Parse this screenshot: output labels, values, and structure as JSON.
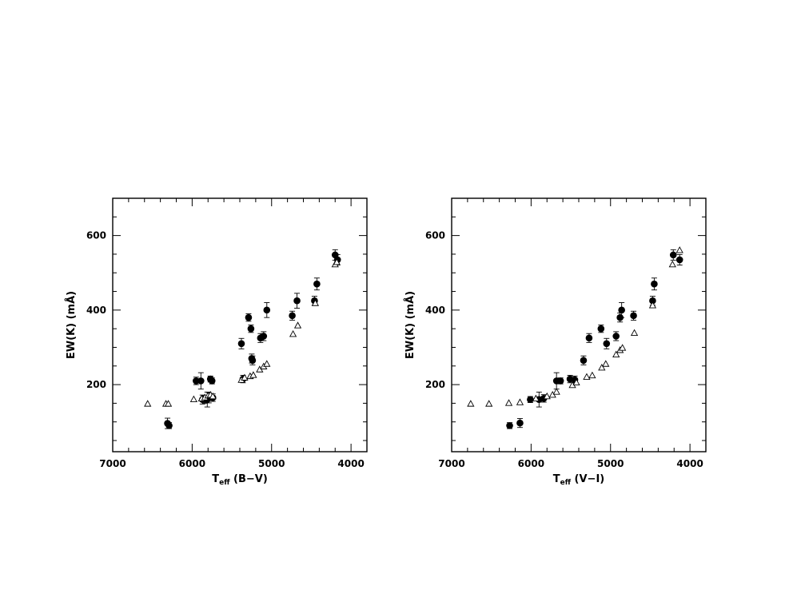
{
  "chart_data": [
    {
      "type": "scatter",
      "title": "",
      "xlabel": "T",
      "xlabel_sub": "eff",
      "xlabel_suffix": " (B−V)",
      "ylabel": "EW(K)  (mÅ)",
      "xlim": [
        7000,
        3800
      ],
      "ylim": [
        20,
        700
      ],
      "x_ticks": [
        7000,
        6000,
        5000,
        4000
      ],
      "y_ticks": [
        200,
        400,
        600
      ],
      "x_tick_labels": [
        "7000",
        "6000",
        "5000",
        "4000"
      ],
      "y_tick_labels": [
        "200",
        "400",
        "600"
      ],
      "grid": false,
      "series": [
        {
          "marker": "filled-circle",
          "error_bars": true,
          "points": [
            {
              "x": 6310,
              "y": 96,
              "err": 14
            },
            {
              "x": 6290,
              "y": 90,
              "err": 8
            },
            {
              "x": 5950,
              "y": 210,
              "err": 10
            },
            {
              "x": 5890,
              "y": 210,
              "err": 22
            },
            {
              "x": 5870,
              "y": 160,
              "err": 12
            },
            {
              "x": 5840,
              "y": 160,
              "err": 10
            },
            {
              "x": 5810,
              "y": 160,
              "err": 20
            },
            {
              "x": 5790,
              "y": 165,
              "err": 14
            },
            {
              "x": 5770,
              "y": 215,
              "err": 8
            },
            {
              "x": 5750,
              "y": 210,
              "err": 8
            },
            {
              "x": 5740,
              "y": 165,
              "err": 10
            },
            {
              "x": 5380,
              "y": 310,
              "err": 14
            },
            {
              "x": 5360,
              "y": 215,
              "err": 10
            },
            {
              "x": 5290,
              "y": 380,
              "err": 10
            },
            {
              "x": 5260,
              "y": 350,
              "err": 10
            },
            {
              "x": 5250,
              "y": 270,
              "err": 12
            },
            {
              "x": 5240,
              "y": 265,
              "err": 12
            },
            {
              "x": 5140,
              "y": 325,
              "err": 12
            },
            {
              "x": 5100,
              "y": 330,
              "err": 12
            },
            {
              "x": 5060,
              "y": 400,
              "err": 20
            },
            {
              "x": 4740,
              "y": 385,
              "err": 12
            },
            {
              "x": 4680,
              "y": 425,
              "err": 20
            },
            {
              "x": 4460,
              "y": 425,
              "err": 12
            },
            {
              "x": 4430,
              "y": 470,
              "err": 16
            },
            {
              "x": 4200,
              "y": 548,
              "err": 14
            },
            {
              "x": 4170,
              "y": 535,
              "err": 14
            }
          ]
        },
        {
          "marker": "open-triangle",
          "error_bars": false,
          "points": [
            {
              "x": 6560,
              "y": 148
            },
            {
              "x": 6330,
              "y": 148
            },
            {
              "x": 6300,
              "y": 148
            },
            {
              "x": 5980,
              "y": 160
            },
            {
              "x": 5880,
              "y": 162
            },
            {
              "x": 5840,
              "y": 165
            },
            {
              "x": 5800,
              "y": 170
            },
            {
              "x": 5770,
              "y": 172
            },
            {
              "x": 5740,
              "y": 168
            },
            {
              "x": 5380,
              "y": 212
            },
            {
              "x": 5340,
              "y": 218
            },
            {
              "x": 5270,
              "y": 222
            },
            {
              "x": 5230,
              "y": 225
            },
            {
              "x": 5150,
              "y": 240
            },
            {
              "x": 5100,
              "y": 248
            },
            {
              "x": 5060,
              "y": 255
            },
            {
              "x": 4730,
              "y": 335
            },
            {
              "x": 4670,
              "y": 358
            },
            {
              "x": 4450,
              "y": 418
            },
            {
              "x": 4200,
              "y": 522
            },
            {
              "x": 4180,
              "y": 528
            }
          ]
        }
      ]
    },
    {
      "type": "scatter",
      "title": "",
      "xlabel": "T",
      "xlabel_sub": "eff",
      "xlabel_suffix": " (V−I)",
      "ylabel": "EW(K)  (mÅ)",
      "xlim": [
        7000,
        3800
      ],
      "ylim": [
        20,
        700
      ],
      "x_ticks": [
        7000,
        6000,
        5000,
        4000
      ],
      "y_ticks": [
        200,
        400,
        600
      ],
      "x_tick_labels": [
        "7000",
        "6000",
        "5000",
        "4000"
      ],
      "y_tick_labels": [
        "200",
        "400",
        "600"
      ],
      "grid": false,
      "series": [
        {
          "marker": "filled-circle",
          "error_bars": true,
          "points": [
            {
              "x": 6270,
              "y": 90,
              "err": 8
            },
            {
              "x": 6140,
              "y": 97,
              "err": 12
            },
            {
              "x": 6010,
              "y": 160,
              "err": 8
            },
            {
              "x": 5900,
              "y": 160,
              "err": 20
            },
            {
              "x": 5840,
              "y": 163,
              "err": 10
            },
            {
              "x": 5680,
              "y": 210,
              "err": 22
            },
            {
              "x": 5630,
              "y": 210,
              "err": 8
            },
            {
              "x": 5510,
              "y": 215,
              "err": 10
            },
            {
              "x": 5450,
              "y": 213,
              "err": 10
            },
            {
              "x": 5340,
              "y": 265,
              "err": 12
            },
            {
              "x": 5270,
              "y": 325,
              "err": 12
            },
            {
              "x": 5120,
              "y": 350,
              "err": 10
            },
            {
              "x": 5050,
              "y": 310,
              "err": 14
            },
            {
              "x": 4930,
              "y": 330,
              "err": 12
            },
            {
              "x": 4880,
              "y": 380,
              "err": 12
            },
            {
              "x": 4860,
              "y": 400,
              "err": 20
            },
            {
              "x": 4710,
              "y": 385,
              "err": 12
            },
            {
              "x": 4470,
              "y": 425,
              "err": 12
            },
            {
              "x": 4450,
              "y": 470,
              "err": 16
            },
            {
              "x": 4210,
              "y": 548,
              "err": 14
            },
            {
              "x": 4130,
              "y": 535,
              "err": 14
            }
          ]
        },
        {
          "marker": "open-triangle",
          "error_bars": false,
          "points": [
            {
              "x": 6760,
              "y": 148
            },
            {
              "x": 6530,
              "y": 148
            },
            {
              "x": 6280,
              "y": 150
            },
            {
              "x": 6140,
              "y": 152
            },
            {
              "x": 5940,
              "y": 162
            },
            {
              "x": 5800,
              "y": 168
            },
            {
              "x": 5730,
              "y": 172
            },
            {
              "x": 5680,
              "y": 180
            },
            {
              "x": 5480,
              "y": 198
            },
            {
              "x": 5430,
              "y": 205
            },
            {
              "x": 5300,
              "y": 220
            },
            {
              "x": 5230,
              "y": 224
            },
            {
              "x": 5110,
              "y": 245
            },
            {
              "x": 5060,
              "y": 255
            },
            {
              "x": 4930,
              "y": 280
            },
            {
              "x": 4880,
              "y": 292
            },
            {
              "x": 4850,
              "y": 298
            },
            {
              "x": 4700,
              "y": 338
            },
            {
              "x": 4470,
              "y": 412
            },
            {
              "x": 4220,
              "y": 522
            },
            {
              "x": 4130,
              "y": 560
            }
          ]
        }
      ]
    }
  ]
}
